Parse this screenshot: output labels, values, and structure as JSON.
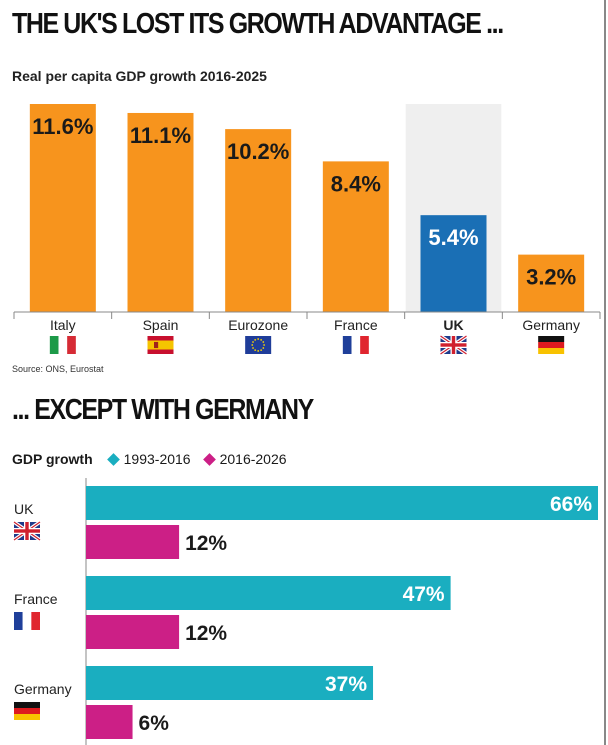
{
  "headline_top": "THE UK'S LOST ITS GROWTH ADVANTAGE ...",
  "headline_bottom": "... EXCEPT WITH GERMANY",
  "source": "Source: ONS, Eurostat",
  "chart_data": [
    {
      "type": "bar",
      "title": "Real per capita GDP growth 2016-2025",
      "categories": [
        "Italy",
        "Spain",
        "Eurozone",
        "France",
        "UK",
        "Germany"
      ],
      "values": [
        11.6,
        11.1,
        10.2,
        8.4,
        5.4,
        3.2
      ],
      "value_labels": [
        "11.6%",
        "11.1%",
        "10.2%",
        "8.4%",
        "5.4%",
        "3.2%"
      ],
      "flags": [
        "italy-flag-icon",
        "spain-flag-icon",
        "eu-flag-icon",
        "france-flag-icon",
        "uk-flag-icon",
        "germany-flag-icon"
      ],
      "highlight": "UK",
      "colors": {
        "default": "#f7941d",
        "highlight": "#1a6fb5",
        "highlight_bg": "#efefef"
      },
      "ylim": [
        0,
        12
      ]
    },
    {
      "type": "bar",
      "orientation": "horizontal",
      "legend_title": "GDP growth",
      "categories": [
        "UK",
        "France",
        "Germany"
      ],
      "series": [
        {
          "name": "1993-2016",
          "color": "#1aaec0",
          "values": [
            66,
            47,
            37
          ],
          "labels": [
            "66%",
            "47%",
            "37%"
          ]
        },
        {
          "name": "2016-2026",
          "color": "#cc1f86",
          "values": [
            12,
            12,
            6
          ],
          "labels": [
            "12%",
            "12%",
            "6%"
          ]
        }
      ],
      "flags": [
        "uk-flag-icon",
        "france-flag-icon",
        "germany-flag-icon"
      ],
      "xlim": [
        0,
        66
      ]
    }
  ]
}
